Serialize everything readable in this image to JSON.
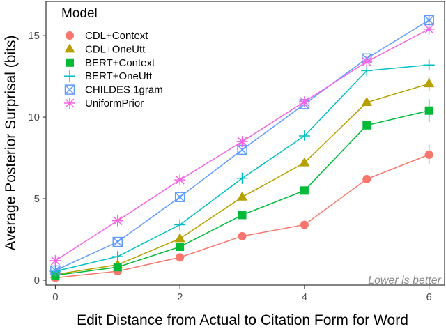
{
  "chart_data": {
    "type": "line",
    "xlabel": "Edit Distance from Actual to Citation Form for Word",
    "ylabel": "Average Posterior Surprisal (bits)",
    "x": [
      0,
      1,
      2,
      3,
      4,
      5,
      6
    ],
    "xlim": [
      -0.15,
      6.25
    ],
    "ylim": [
      -0.3,
      17.1
    ],
    "xticks": [
      0,
      2,
      4,
      6
    ],
    "yticks": [
      0,
      5,
      10,
      15
    ],
    "grid": false,
    "legend": {
      "title": "Model",
      "placement": "top-left"
    },
    "annotation": "Lower is better",
    "series": [
      {
        "name": "CDL+Context",
        "color": "#F8766D",
        "marker": "circle",
        "values": [
          0.15,
          0.55,
          1.4,
          2.7,
          3.4,
          6.2,
          7.7
        ],
        "err": [
          0.1,
          0.1,
          0.1,
          0.1,
          0.15,
          0.2,
          0.6
        ]
      },
      {
        "name": "CDL+OneUtt",
        "color": "#B79F00",
        "marker": "triangle",
        "values": [
          0.35,
          0.95,
          2.55,
          5.1,
          7.2,
          10.9,
          12.05
        ],
        "err": [
          0.1,
          0.1,
          0.1,
          0.15,
          0.2,
          0.2,
          0.45
        ]
      },
      {
        "name": "BERT+Context",
        "color": "#00BA38",
        "marker": "square",
        "values": [
          0.3,
          0.8,
          2.05,
          4.0,
          5.5,
          9.5,
          10.4
        ],
        "err": [
          0.1,
          0.1,
          0.1,
          0.15,
          0.2,
          0.2,
          0.7
        ]
      },
      {
        "name": "BERT+OneUtt",
        "color": "#00BFC4",
        "marker": "plus",
        "values": [
          0.55,
          1.45,
          3.4,
          6.25,
          8.85,
          12.85,
          13.2
        ],
        "err": [
          0.1,
          0.1,
          0.15,
          0.15,
          0.2,
          0.2,
          0.3
        ]
      },
      {
        "name": "CHILDES 1gram",
        "color": "#619CFF",
        "marker": "boxx",
        "values": [
          0.6,
          2.35,
          5.1,
          8.0,
          10.8,
          13.6,
          15.95
        ],
        "err": [
          0.1,
          0.1,
          0.1,
          0.1,
          0.15,
          0.15,
          0.3
        ]
      },
      {
        "name": "UniformPrior",
        "color": "#F564E3",
        "marker": "star",
        "values": [
          1.2,
          3.65,
          6.15,
          8.5,
          10.95,
          13.4,
          15.4
        ],
        "err": [
          0.1,
          0.1,
          0.1,
          0.1,
          0.1,
          0.15,
          0.25
        ]
      }
    ]
  }
}
